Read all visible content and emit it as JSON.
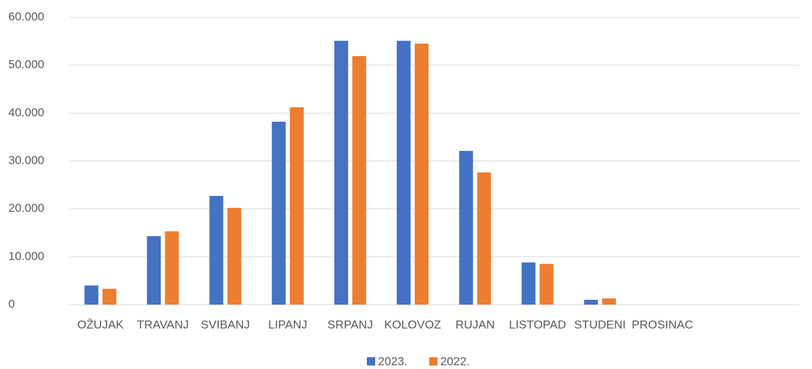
{
  "chart_data": {
    "type": "bar",
    "categories": [
      "OŽUJAK",
      "TRAVANJ",
      "SVIBANJ",
      "LIPANJ",
      "SRPANJ",
      "KOLOVOZ",
      "RUJAN",
      "LISTOPAD",
      "STUDENI",
      "PROSINAC",
      null,
      null
    ],
    "series": [
      {
        "name": "2023.",
        "color": "#4472c4",
        "values": [
          4000,
          14300,
          22700,
          38200,
          55100,
          55100,
          32100,
          8800,
          1000,
          null,
          null,
          null
        ]
      },
      {
        "name": "2022.",
        "color": "#ed7d31",
        "values": [
          3300,
          15300,
          20200,
          41200,
          51900,
          54500,
          27600,
          8500,
          1300,
          null,
          null,
          null
        ]
      }
    ],
    "ylim": [
      0,
      60000
    ],
    "yticks": [
      {
        "value": 0,
        "label": "0"
      },
      {
        "value": 10000,
        "label": "10.000"
      },
      {
        "value": 20000,
        "label": "20.000"
      },
      {
        "value": 30000,
        "label": "30.000"
      },
      {
        "value": 40000,
        "label": "40.000"
      },
      {
        "value": 50000,
        "label": "50.000"
      },
      {
        "value": 60000,
        "label": "60.000"
      }
    ],
    "grid": true,
    "legend": "bottom"
  }
}
